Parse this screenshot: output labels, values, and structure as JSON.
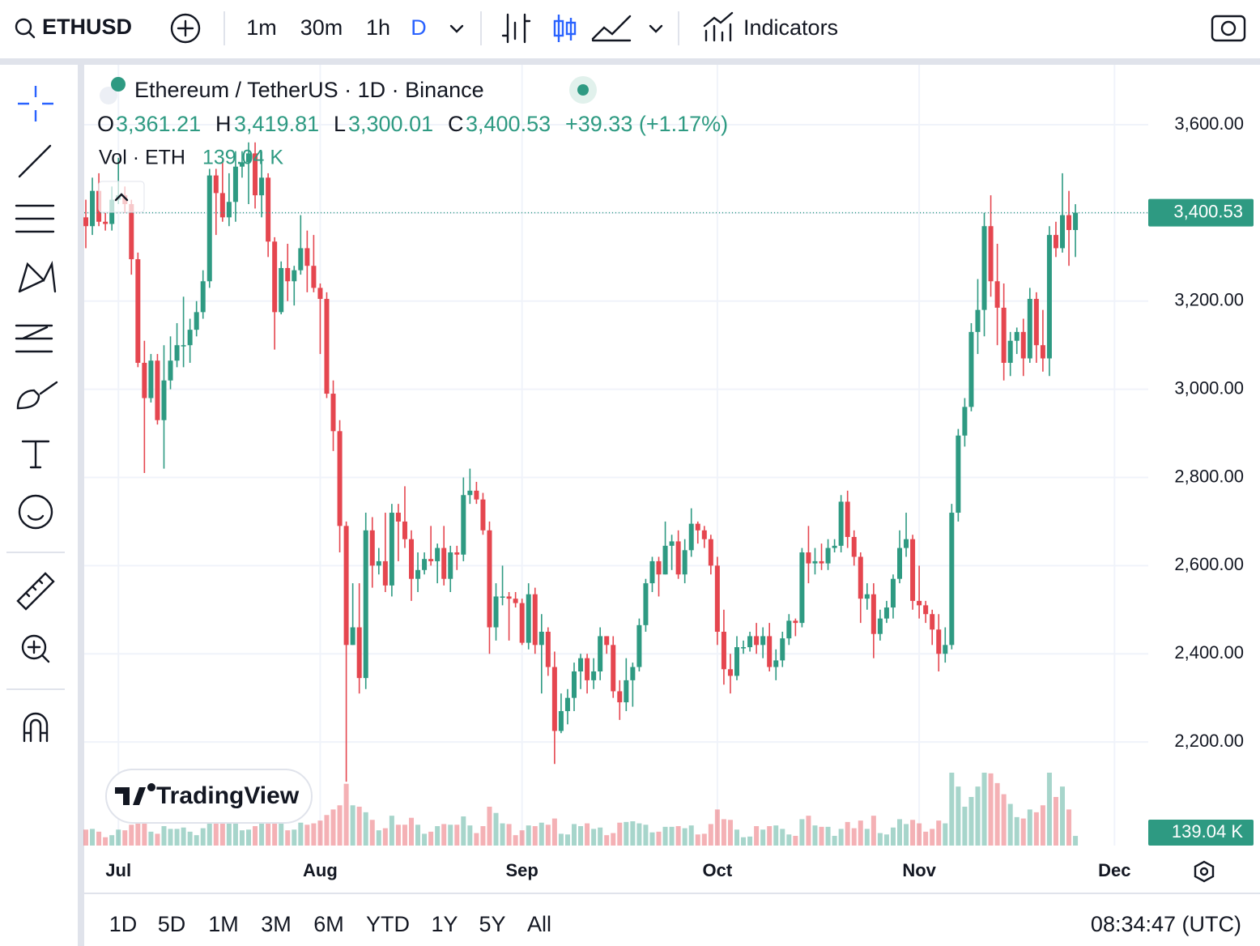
{
  "toolbar": {
    "symbol": "ETHUSD",
    "intervals": [
      "1m",
      "30m",
      "1h",
      "D"
    ],
    "indicators": "Indicators"
  },
  "legend": {
    "title": "Ethereum / TetherUS · 1D · Binance",
    "o": "O",
    "o_value": "3,361.21",
    "h": "H",
    "h_value": "3,419.81",
    "l": "L",
    "l_value": "3,300.01",
    "c": "C",
    "c_value": "3,400.53",
    "change": "+39.33 (+1.17%)",
    "vol": "Vol · ETH",
    "vol_value": "139.04 K"
  },
  "watermark": "TradingView",
  "range_bar": {
    "ranges": [
      "1D",
      "5D",
      "1M",
      "3M",
      "6M",
      "YTD",
      "1Y",
      "5Y",
      "All"
    ],
    "clock": "08:34:47 (UTC)"
  },
  "chart_data": {
    "type": "candlestick",
    "up_color": "#2e9a82",
    "down_color": "#e5464f",
    "grid": true,
    "open": [
      3390,
      3370,
      3450,
      3380,
      3375,
      3430,
      3440,
      3420,
      3295,
      3060,
      2980,
      3065,
      2930,
      3020,
      3065,
      3100,
      3100,
      3135,
      3175,
      3245,
      3485,
      3445,
      3390,
      3425,
      3505,
      3515,
      3535,
      3440,
      3480,
      3335,
      3175,
      3275,
      3245,
      3270,
      3320,
      3280,
      3230,
      3205,
      2990,
      2905,
      2690,
      2420,
      2460,
      2345,
      2680,
      2600,
      2610,
      2555,
      2720,
      2700,
      2660,
      2570,
      2590,
      2615,
      2610,
      2640,
      2570,
      2630,
      2625,
      2760,
      2770,
      2750,
      2680,
      2460,
      2530,
      2530,
      2525,
      2515,
      2425,
      2535,
      2420,
      2450,
      2370,
      2225,
      2270,
      2300,
      2360,
      2390,
      2340,
      2360,
      2440,
      2420,
      2315,
      2290,
      2340,
      2370,
      2465,
      2560,
      2610,
      2580,
      2645,
      2655,
      2580,
      2635,
      2695,
      2680,
      2660,
      2600,
      2450,
      2365,
      2350,
      2415,
      2415,
      2440,
      2420,
      2440,
      2370,
      2385,
      2435,
      2475,
      2470,
      2630,
      2605,
      2610,
      2605,
      2640,
      2645,
      2745,
      2665,
      2620,
      2525,
      2535,
      2445,
      2480,
      2505,
      2570,
      2640,
      2660,
      2520,
      2510,
      2490,
      2455,
      2400,
      2420,
      2720,
      2895,
      2960,
      3130,
      3180,
      3370,
      3245,
      3185,
      3060,
      3110,
      3130,
      3070,
      3205,
      3100,
      3070,
      3350,
      3320,
      3395,
      3361.21
    ],
    "high": [
      3430,
      3480,
      3490,
      3400,
      3460,
      3525,
      3460,
      3430,
      3310,
      3110,
      3080,
      3080,
      3100,
      3120,
      3150,
      3210,
      3160,
      3200,
      3270,
      3500,
      3500,
      3520,
      3490,
      3540,
      3540,
      3560,
      3560,
      3540,
      3490,
      3345,
      3290,
      3330,
      3280,
      3395,
      3360,
      3350,
      3240,
      3220,
      3020,
      2930,
      2700,
      2560,
      2560,
      2720,
      2710,
      2640,
      2720,
      2740,
      2740,
      2780,
      2680,
      2630,
      2630,
      2690,
      2650,
      2690,
      2645,
      2645,
      2800,
      2820,
      2790,
      2765,
      2700,
      2560,
      2600,
      2540,
      2540,
      2525,
      2560,
      2550,
      2490,
      2460,
      2405,
      2310,
      2320,
      2380,
      2400,
      2400,
      2390,
      2460,
      2440,
      2440,
      2340,
      2390,
      2380,
      2480,
      2570,
      2620,
      2620,
      2700,
      2670,
      2680,
      2660,
      2730,
      2700,
      2690,
      2670,
      2620,
      2500,
      2400,
      2440,
      2430,
      2450,
      2470,
      2460,
      2470,
      2410,
      2450,
      2490,
      2480,
      2640,
      2690,
      2640,
      2650,
      2660,
      2660,
      2760,
      2770,
      2680,
      2630,
      2560,
      2560,
      2500,
      2520,
      2580,
      2680,
      2720,
      2670,
      2600,
      2520,
      2500,
      2490,
      2460,
      2740,
      2910,
      2980,
      3150,
      3250,
      3400,
      3440,
      3330,
      3240,
      3130,
      3140,
      3160,
      3230,
      3220,
      3180,
      3370,
      3380,
      3490,
      3450,
      3419.81
    ],
    "low": [
      3320,
      3350,
      3370,
      3360,
      3360,
      3420,
      3400,
      3260,
      3050,
      2810,
      2970,
      2920,
      2820,
      3000,
      3050,
      3050,
      3060,
      3120,
      3160,
      3230,
      3350,
      3380,
      3370,
      3380,
      3480,
      3420,
      3410,
      3390,
      3300,
      3090,
      3170,
      3200,
      3190,
      3260,
      3220,
      3220,
      3080,
      2980,
      2860,
      2630,
      2110,
      2420,
      2310,
      2320,
      2550,
      2580,
      2540,
      2530,
      2610,
      2640,
      2520,
      2540,
      2580,
      2600,
      2560,
      2555,
      2540,
      2590,
      2610,
      2740,
      2740,
      2670,
      2400,
      2430,
      2510,
      2430,
      2505,
      2420,
      2410,
      2400,
      2310,
      2350,
      2150,
      2220,
      2240,
      2270,
      2320,
      2310,
      2320,
      2340,
      2400,
      2300,
      2250,
      2270,
      2280,
      2360,
      2450,
      2540,
      2530,
      2580,
      2590,
      2570,
      2560,
      2620,
      2650,
      2640,
      2580,
      2420,
      2330,
      2310,
      2340,
      2400,
      2405,
      2400,
      2390,
      2360,
      2340,
      2370,
      2420,
      2440,
      2460,
      2560,
      2580,
      2590,
      2590,
      2630,
      2630,
      2640,
      2600,
      2470,
      2500,
      2390,
      2430,
      2470,
      2480,
      2560,
      2620,
      2500,
      2480,
      2470,
      2420,
      2360,
      2380,
      2410,
      2700,
      2870,
      2950,
      3080,
      3120,
      3210,
      3100,
      3020,
      3030,
      3080,
      3030,
      3060,
      3060,
      3040,
      3030,
      3300,
      3310,
      3280,
      3300.01
    ],
    "close": [
      3370,
      3450,
      3380,
      3375,
      3430,
      3440,
      3420,
      3295,
      3060,
      2980,
      3065,
      2930,
      3020,
      3065,
      3100,
      3100,
      3135,
      3175,
      3245,
      3485,
      3445,
      3390,
      3425,
      3505,
      3515,
      3535,
      3440,
      3480,
      3335,
      3175,
      3275,
      3245,
      3270,
      3320,
      3280,
      3230,
      3205,
      2990,
      2905,
      2690,
      2420,
      2460,
      2345,
      2680,
      2600,
      2610,
      2555,
      2720,
      2700,
      2660,
      2570,
      2590,
      2615,
      2610,
      2640,
      2570,
      2630,
      2625,
      2760,
      2770,
      2750,
      2680,
      2460,
      2530,
      2530,
      2525,
      2515,
      2425,
      2535,
      2420,
      2450,
      2370,
      2225,
      2270,
      2300,
      2360,
      2390,
      2340,
      2360,
      2440,
      2420,
      2315,
      2290,
      2340,
      2370,
      2465,
      2560,
      2610,
      2580,
      2645,
      2655,
      2580,
      2635,
      2695,
      2680,
      2660,
      2600,
      2450,
      2365,
      2350,
      2415,
      2415,
      2440,
      2420,
      2440,
      2370,
      2385,
      2435,
      2475,
      2470,
      2630,
      2605,
      2610,
      2605,
      2640,
      2645,
      2745,
      2665,
      2620,
      2525,
      2535,
      2445,
      2480,
      2505,
      2570,
      2640,
      2660,
      2520,
      2510,
      2490,
      2455,
      2400,
      2420,
      2720,
      2895,
      2960,
      3130,
      3180,
      3370,
      3245,
      3185,
      3060,
      3110,
      3130,
      3070,
      3205,
      3100,
      3070,
      3350,
      3320,
      3395,
      3361.21,
      3400.53
    ],
    "volume": [
      230,
      240,
      200,
      120,
      150,
      230,
      220,
      300,
      380,
      560,
      200,
      170,
      280,
      240,
      240,
      260,
      200,
      150,
      250,
      440,
      370,
      320,
      330,
      360,
      220,
      230,
      280,
      330,
      360,
      600,
      350,
      220,
      230,
      330,
      300,
      320,
      360,
      440,
      520,
      580,
      890,
      580,
      560,
      480,
      370,
      220,
      250,
      430,
      300,
      300,
      400,
      300,
      170,
      200,
      280,
      310,
      300,
      300,
      420,
      290,
      180,
      280,
      560,
      470,
      320,
      310,
      150,
      220,
      290,
      280,
      330,
      300,
      390,
      170,
      160,
      310,
      280,
      320,
      240,
      260,
      150,
      180,
      330,
      340,
      350,
      320,
      300,
      190,
      200,
      270,
      270,
      280,
      250,
      290,
      160,
      170,
      310,
      520,
      380,
      370,
      230,
      120,
      130,
      280,
      230,
      280,
      290,
      240,
      160,
      140,
      380,
      430,
      290,
      270,
      270,
      140,
      240,
      340,
      250,
      360,
      240,
      430,
      180,
      160,
      260,
      380,
      310,
      370,
      320,
      200,
      240,
      360,
      320,
      1050,
      850,
      560,
      700,
      850,
      1050,
      1040,
      900,
      740,
      600,
      410,
      390,
      520,
      480,
      580,
      1050,
      700,
      850,
      520,
      139.04
    ],
    "value_labels": {
      "last_close": "3,400.53",
      "last_volume": "139.04 K"
    },
    "xticks": [
      {
        "value": 5,
        "label": "Jul"
      },
      {
        "value": 36,
        "label": "Aug"
      },
      {
        "value": 67,
        "label": "Sep"
      },
      {
        "value": 97,
        "label": "Oct"
      },
      {
        "value": 128,
        "label": "Nov"
      },
      {
        "value": 158,
        "label": "Dec"
      }
    ],
    "ylim": [
      1965,
      3736
    ],
    "yticks": [
      {
        "value": 2200,
        "label": "2,200.00"
      },
      {
        "value": 2400,
        "label": "2,400.00"
      },
      {
        "value": 2600,
        "label": "2,600.00"
      },
      {
        "value": 2800,
        "label": "2,800.00"
      },
      {
        "value": 3000,
        "label": "3,000.00"
      },
      {
        "value": 3200,
        "label": "3,200.00"
      },
      {
        "value": 3400,
        "label": "3,400.00"
      },
      {
        "value": 3600,
        "label": "3,600.00"
      }
    ]
  }
}
